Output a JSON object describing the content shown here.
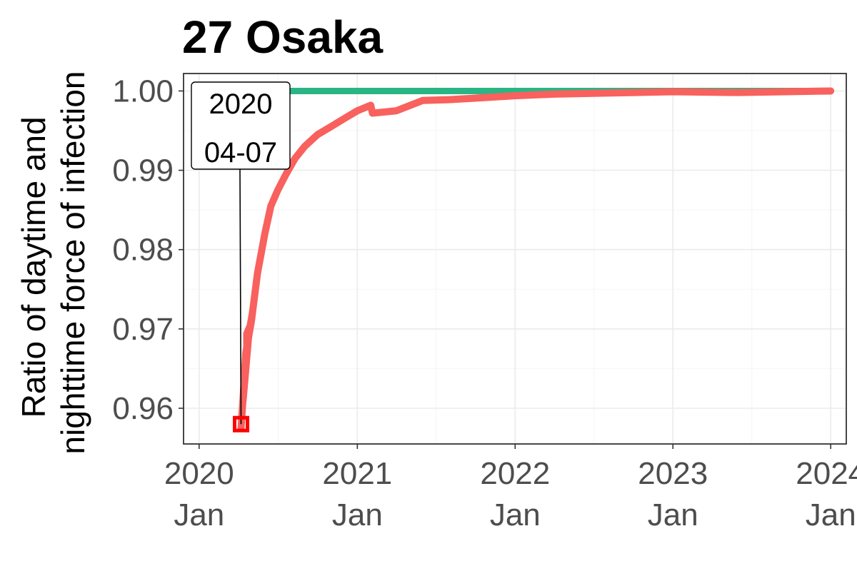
{
  "chart_data": {
    "type": "line",
    "title": "27 Osaka",
    "ylabel_lines": [
      "Ratio of daytime and",
      "nighttime force of infection"
    ],
    "xlabel": "",
    "x_ticks": [
      {
        "date": "2020-01-01",
        "year": "2020",
        "month": "Jan"
      },
      {
        "date": "2021-01-01",
        "year": "2021",
        "month": "Jan"
      },
      {
        "date": "2022-01-01",
        "year": "2022",
        "month": "Jan"
      },
      {
        "date": "2023-01-01",
        "year": "2023",
        "month": "Jan"
      },
      {
        "date": "2024-01-01",
        "year": "2024",
        "month": "Jan"
      }
    ],
    "y_ticks": [
      "0.96",
      "0.97",
      "0.98",
      "0.99",
      "1.00"
    ],
    "xlim": [
      "2019-11-26",
      "2024-02-06"
    ],
    "ylim": [
      0.9555,
      1.0022
    ],
    "grid": true,
    "legend": "none",
    "series": [
      {
        "color": "#2bb585",
        "points": [
          {
            "x": "2020-04-07",
            "y": 1.0
          },
          {
            "x": "2023-12-31",
            "y": 1.0
          }
        ]
      },
      {
        "color": "#f8615d",
        "points": [
          {
            "x": "2020-04-07",
            "y": 0.9575
          },
          {
            "x": "2020-04-12",
            "y": 0.9615
          },
          {
            "x": "2020-04-18",
            "y": 0.967
          },
          {
            "x": "2020-05-01",
            "y": 0.971
          },
          {
            "x": "2020-05-15",
            "y": 0.977
          },
          {
            "x": "2020-06-01",
            "y": 0.982
          },
          {
            "x": "2020-06-15",
            "y": 0.9855
          },
          {
            "x": "2020-07-01",
            "y": 0.9875
          },
          {
            "x": "2020-07-20",
            "y": 0.9895
          },
          {
            "x": "2020-08-10",
            "y": 0.9915
          },
          {
            "x": "2020-09-01",
            "y": 0.993
          },
          {
            "x": "2020-10-01",
            "y": 0.9945
          },
          {
            "x": "2020-11-01",
            "y": 0.9955
          },
          {
            "x": "2020-12-01",
            "y": 0.9965
          },
          {
            "x": "2021-01-01",
            "y": 0.9975
          },
          {
            "x": "2021-02-01",
            "y": 0.9982
          },
          {
            "x": "2021-02-05",
            "y": 0.9972
          },
          {
            "x": "2021-04-01",
            "y": 0.9975
          },
          {
            "x": "2021-06-01",
            "y": 0.9988
          },
          {
            "x": "2021-08-01",
            "y": 0.9989
          },
          {
            "x": "2021-10-01",
            "y": 0.9991
          },
          {
            "x": "2022-01-01",
            "y": 0.9994
          },
          {
            "x": "2022-04-01",
            "y": 0.9996
          },
          {
            "x": "2022-07-01",
            "y": 0.9997
          },
          {
            "x": "2023-01-01",
            "y": 0.9999
          },
          {
            "x": "2023-06-01",
            "y": 0.9998
          },
          {
            "x": "2024-01-01",
            "y": 1.0
          }
        ]
      }
    ],
    "annotation": {
      "x": "2020-04-07",
      "y": 0.958,
      "lines": [
        "2020",
        "04-07"
      ],
      "marker_color": "#ff0000"
    }
  }
}
